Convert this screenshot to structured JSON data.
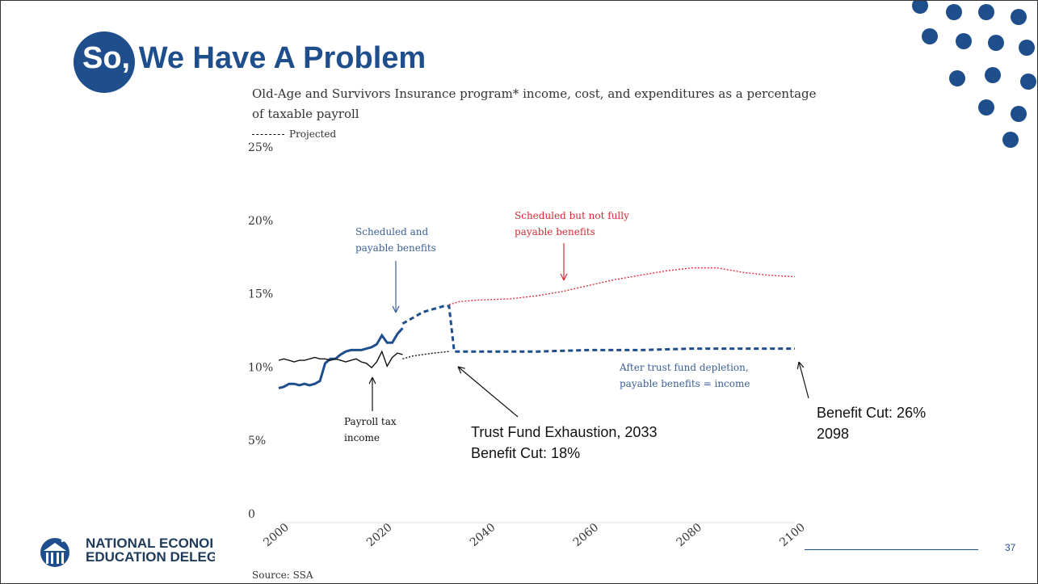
{
  "slide": {
    "title_prefix": "So,",
    "title_main": "We Have A Problem",
    "page_number": "37",
    "logo_line1": "NATIONAL ECONOI",
    "logo_line2": "EDUCATION DELEGAT",
    "accent_color": "#1f4e8c"
  },
  "chart_data": {
    "type": "line",
    "title": "Old-Age and Survivors Insurance program* income, cost, and expenditures as a percentage of taxable payroll",
    "legend": [
      {
        "label": "Projected",
        "style": "dashed"
      }
    ],
    "xlim": [
      2000,
      2100
    ],
    "ylim": [
      0,
      25
    ],
    "x_ticks": [
      "2000",
      "2020",
      "2040",
      "2060",
      "2080",
      "2100"
    ],
    "y_ticks": [
      "0",
      "5%",
      "10%",
      "15%",
      "20%",
      "25%"
    ],
    "series": [
      {
        "color": "#1f4e8c",
        "style": "solid",
        "points": [
          [
            2000,
            8.5
          ],
          [
            2001,
            8.6
          ],
          [
            2002,
            8.8
          ],
          [
            2003,
            8.8
          ],
          [
            2004,
            8.7
          ],
          [
            2005,
            8.8
          ],
          [
            2006,
            8.7
          ],
          [
            2007,
            8.8
          ],
          [
            2008,
            9.0
          ],
          [
            2009,
            10.2
          ],
          [
            2010,
            10.5
          ],
          [
            2011,
            10.5
          ],
          [
            2012,
            10.8
          ],
          [
            2013,
            11.0
          ],
          [
            2014,
            11.1
          ],
          [
            2015,
            11.1
          ],
          [
            2016,
            11.1
          ],
          [
            2017,
            11.2
          ],
          [
            2018,
            11.3
          ],
          [
            2019,
            11.5
          ],
          [
            2020,
            12.1
          ],
          [
            2021,
            11.6
          ],
          [
            2022,
            11.6
          ],
          [
            2023,
            12.2
          ],
          [
            2024,
            12.6
          ]
        ]
      },
      {
        "color": "#1f4e8c",
        "style": "dashed",
        "points": [
          [
            2024,
            12.9
          ],
          [
            2026,
            13.3
          ],
          [
            2028,
            13.7
          ],
          [
            2030,
            13.9
          ],
          [
            2032,
            14.1
          ],
          [
            2033,
            14.1
          ],
          [
            2034,
            11.0
          ],
          [
            2040,
            11.0
          ],
          [
            2050,
            11.0
          ],
          [
            2060,
            11.1
          ],
          [
            2070,
            11.1
          ],
          [
            2080,
            11.2
          ],
          [
            2090,
            11.2
          ],
          [
            2100,
            11.2
          ]
        ]
      },
      {
        "color": "#e0303a",
        "style": "dotted",
        "points": [
          [
            2033,
            14.2
          ],
          [
            2035,
            14.4
          ],
          [
            2038,
            14.5
          ],
          [
            2045,
            14.6
          ],
          [
            2050,
            14.8
          ],
          [
            2055,
            15.1
          ],
          [
            2060,
            15.5
          ],
          [
            2065,
            15.9
          ],
          [
            2070,
            16.2
          ],
          [
            2075,
            16.5
          ],
          [
            2080,
            16.7
          ],
          [
            2085,
            16.7
          ],
          [
            2090,
            16.4
          ],
          [
            2095,
            16.2
          ],
          [
            2100,
            16.1
          ]
        ]
      },
      {
        "color": "#111111",
        "style": "solid",
        "points": [
          [
            2000,
            10.4
          ],
          [
            2001,
            10.5
          ],
          [
            2002,
            10.4
          ],
          [
            2003,
            10.3
          ],
          [
            2004,
            10.4
          ],
          [
            2005,
            10.4
          ],
          [
            2006,
            10.5
          ],
          [
            2007,
            10.6
          ],
          [
            2008,
            10.5
          ],
          [
            2009,
            10.5
          ],
          [
            2010,
            10.4
          ],
          [
            2011,
            10.5
          ],
          [
            2012,
            10.4
          ],
          [
            2013,
            10.3
          ],
          [
            2014,
            10.4
          ],
          [
            2015,
            10.5
          ],
          [
            2016,
            10.3
          ],
          [
            2017,
            10.2
          ],
          [
            2018,
            9.9
          ],
          [
            2019,
            10.3
          ],
          [
            2020,
            11.0
          ],
          [
            2021,
            10.0
          ],
          [
            2022,
            10.6
          ],
          [
            2023,
            10.9
          ],
          [
            2024,
            10.8
          ]
        ]
      },
      {
        "color": "#111111",
        "style": "dotted",
        "points": [
          [
            2024,
            10.5
          ],
          [
            2026,
            10.7
          ],
          [
            2028,
            10.8
          ],
          [
            2030,
            10.9
          ],
          [
            2033,
            11.0
          ]
        ]
      }
    ],
    "annotations": [
      {
        "text": [
          "Scheduled and",
          "payable benefits"
        ],
        "color": "#3a5f95"
      },
      {
        "text": [
          "Scheduled but not fully",
          "payable benefits"
        ],
        "color": "#d62b36"
      },
      {
        "text": [
          "Payroll tax",
          "income"
        ],
        "color": "#111111"
      },
      {
        "text": [
          "After trust fund depletion,",
          "payable benefits = income"
        ],
        "color": "#3a5f95"
      },
      {
        "text": [
          "Trust Fund Exhaustion, 2033",
          "Benefit Cut:  18%"
        ],
        "color": "#111111"
      },
      {
        "text": [
          "Benefit Cut: 26%",
          "2098"
        ],
        "color": "#111111"
      }
    ],
    "source": "Source: SSA"
  }
}
